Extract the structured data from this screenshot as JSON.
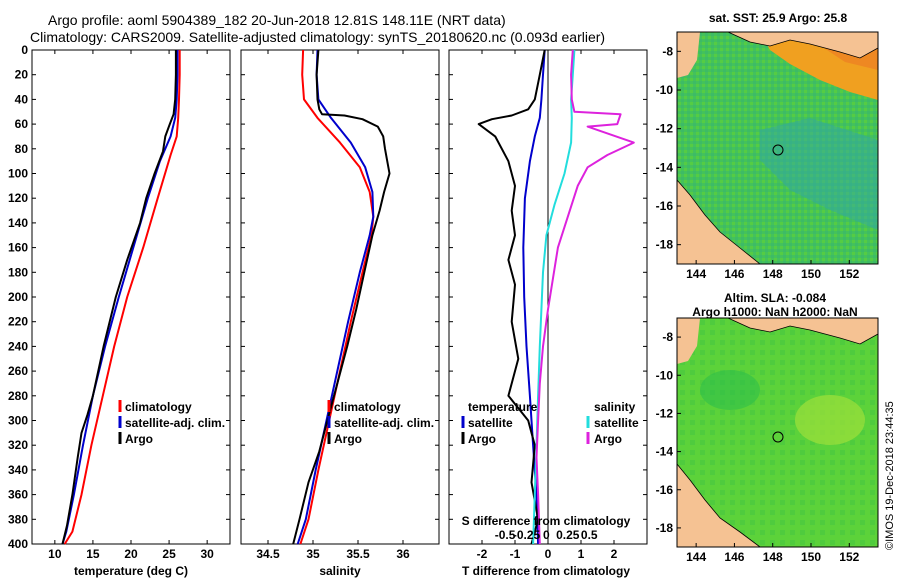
{
  "header": {
    "title_line1": "Argo profile: aoml 5904389_182 20-Jun-2018 12.81S 148.11E (NRT data)",
    "title_line2": "Climatology: CARS2009. Satellite-adjusted climatology: synTS_20180620.nc (0.093d earlier)"
  },
  "side_stamp": "©IMOS 19-Dec-2018 23:44:35",
  "colors": {
    "climatology": "#ff0000",
    "satellite": "#0000cc",
    "argo": "#000000",
    "sat_salinity": "#22dddd",
    "salinity_clim_diff": "#dd22dd",
    "land": "#f5c293",
    "ocean_green": "#4cc24c"
  },
  "chart_data": [
    {
      "type": "line",
      "id": "temperature",
      "xlabel": "temperature (deg C)",
      "ylabel": "",
      "xlim": [
        7,
        33
      ],
      "ylim": [
        400,
        0
      ],
      "xticks": [
        10,
        15,
        20,
        25,
        30
      ],
      "yticks": [
        0,
        20,
        40,
        60,
        80,
        100,
        120,
        140,
        160,
        180,
        200,
        220,
        240,
        260,
        280,
        300,
        320,
        340,
        360,
        380,
        400
      ],
      "legend": [
        "climatology",
        "satellite-adj. clim.",
        "Argo"
      ],
      "series": [
        {
          "name": "climatology",
          "color": "#ff0000",
          "x": [
            26.4,
            26.4,
            26.3,
            26.2,
            26.0,
            25.2,
            23.5,
            21.6,
            19.5,
            17.8,
            16.3,
            14.8,
            13.5,
            12.3,
            11.3
          ],
          "y": [
            0,
            20,
            40,
            55,
            70,
            85,
            120,
            160,
            200,
            240,
            280,
            320,
            360,
            390,
            400
          ]
        },
        {
          "name": "satellite-adj. clim.",
          "color": "#0000cc",
          "x": [
            26.1,
            26.1,
            26.0,
            25.8,
            25.2,
            23.8,
            22.2,
            20.3,
            18.4,
            16.6,
            15.0,
            13.7,
            12.5,
            11.5,
            11.0
          ],
          "y": [
            0,
            20,
            40,
            55,
            70,
            90,
            120,
            160,
            200,
            240,
            280,
            320,
            360,
            390,
            400
          ]
        },
        {
          "name": "Argo",
          "color": "#000000",
          "x": [
            25.9,
            25.9,
            25.8,
            25.6,
            25.1,
            24.5,
            24.2,
            23.1,
            22.0,
            21.2,
            19.5,
            18.0,
            16.4,
            15.0,
            14.3,
            13.5,
            13.0,
            12.3,
            11.6,
            11.0
          ],
          "y": [
            0,
            20,
            40,
            52,
            60,
            70,
            82,
            100,
            120,
            140,
            170,
            200,
            240,
            280,
            295,
            310,
            330,
            360,
            385,
            400
          ]
        }
      ]
    },
    {
      "type": "line",
      "id": "salinity",
      "xlabel": "salinity",
      "ylabel": "",
      "xlim": [
        34.2,
        36.4
      ],
      "ylim": [
        400,
        0
      ],
      "xticks": [
        34.5,
        35,
        35.5,
        36
      ],
      "xtick_labels": [
        "34.5",
        "35",
        "35.5",
        "36"
      ],
      "legend": [
        "climatology",
        "satellite-adj. clim.",
        "Argo"
      ],
      "series": [
        {
          "name": "climatology",
          "color": "#ff0000",
          "x": [
            34.89,
            34.88,
            34.9,
            35.05,
            35.3,
            35.52,
            35.63,
            35.67,
            35.65,
            35.55,
            35.42,
            35.3,
            35.18,
            35.06,
            34.95,
            34.86
          ],
          "y": [
            0,
            20,
            40,
            55,
            75,
            95,
            115,
            135,
            150,
            180,
            220,
            260,
            300,
            340,
            380,
            400
          ]
        },
        {
          "name": "satellite-adj. clim.",
          "color": "#0000cc",
          "x": [
            35.05,
            35.04,
            35.06,
            35.2,
            35.42,
            35.58,
            35.66,
            35.67,
            35.63,
            35.52,
            35.39,
            35.27,
            35.15,
            35.03,
            34.92,
            34.83
          ],
          "y": [
            0,
            20,
            40,
            55,
            75,
            95,
            115,
            135,
            150,
            180,
            220,
            260,
            300,
            340,
            380,
            400
          ]
        },
        {
          "name": "Argo",
          "color": "#000000",
          "x": [
            35.06,
            35.04,
            35.05,
            35.07,
            35.1,
            35.35,
            35.55,
            35.72,
            35.78,
            35.8,
            35.85,
            35.79,
            35.74,
            35.66,
            35.57,
            35.48,
            35.38,
            35.27,
            35.16,
            35.07,
            34.95,
            34.85,
            34.78
          ],
          "y": [
            0,
            20,
            40,
            48,
            52,
            53,
            56,
            62,
            70,
            80,
            100,
            115,
            130,
            150,
            180,
            210,
            240,
            270,
            300,
            325,
            350,
            380,
            400
          ]
        }
      ]
    },
    {
      "type": "line",
      "id": "difference",
      "xlabel": "T difference from climatology",
      "top_axis_label": "S difference from climatology",
      "xlim": [
        -3,
        3
      ],
      "ylim": [
        400,
        0
      ],
      "xticks": [
        -2,
        -1,
        0,
        1,
        2
      ],
      "xtick_labels": [
        "-2",
        "-1",
        "0",
        "1",
        "2"
      ],
      "s_xticks": [
        -1.3,
        -0.65,
        -0.05,
        0.6,
        1.25
      ],
      "s_xtick_labels": [
        "-0.5",
        "-0.25",
        "0",
        "0.25",
        "0.5"
      ],
      "legend_left_title": "temperature",
      "legend_right_title": "salinity",
      "legend": [
        "satellite",
        "Argo",
        "satellite",
        "Argo"
      ],
      "series": [
        {
          "name": "T satellite",
          "color": "#0000cc",
          "x": [
            -0.1,
            -0.15,
            -0.2,
            -0.25,
            -0.4,
            -0.55,
            -0.7,
            -0.75,
            -0.72,
            -0.65,
            -0.55,
            -0.45,
            -0.35,
            -0.3
          ],
          "y": [
            0,
            20,
            40,
            55,
            70,
            90,
            120,
            160,
            200,
            240,
            280,
            320,
            360,
            400
          ]
        },
        {
          "name": "T Argo",
          "color": "#000000",
          "x": [
            -0.1,
            -0.25,
            -0.4,
            -0.6,
            -1.1,
            -1.7,
            -2.1,
            -1.6,
            -1.2,
            -1.0,
            -1.1,
            -1.0,
            -1.2,
            -1.0,
            -1.1,
            -0.9,
            -1.2,
            -0.6,
            -0.4,
            -0.5,
            -0.3,
            -0.5
          ],
          "y": [
            0,
            20,
            40,
            48,
            53,
            56,
            60,
            70,
            90,
            110,
            130,
            150,
            170,
            190,
            220,
            250,
            280,
            300,
            320,
            350,
            380,
            400
          ]
        },
        {
          "name": "S satellite",
          "color": "#22dddd",
          "x": [
            0.8,
            0.75,
            0.7,
            0.72,
            0.7,
            0.5,
            0.2,
            -0.05,
            -0.15,
            -0.2,
            -0.25,
            -0.3,
            -0.35,
            -0.4,
            -0.45
          ],
          "y": [
            0,
            20,
            40,
            55,
            75,
            100,
            125,
            150,
            180,
            210,
            240,
            280,
            320,
            360,
            400
          ]
        },
        {
          "name": "S Argo",
          "color": "#dd22dd",
          "x": [
            0.75,
            0.7,
            0.72,
            0.8,
            2.2,
            2.1,
            1.2,
            2.6,
            1.8,
            1.2,
            0.9,
            0.3,
            0.0,
            -0.15,
            -0.25,
            -0.3,
            -0.35,
            -0.3,
            -0.25
          ],
          "y": [
            0,
            20,
            40,
            50,
            52,
            60,
            62,
            75,
            85,
            95,
            110,
            160,
            210,
            240,
            270,
            300,
            330,
            360,
            400
          ]
        }
      ]
    }
  ],
  "maps": [
    {
      "title_lines": [
        "sat. SST: 25.9 Argo: 25.8"
      ],
      "xticks": [
        "144",
        "146",
        "148",
        "150",
        "152"
      ],
      "yticks": [
        "-8",
        "-10",
        "-12",
        "-14",
        "-16",
        "-18"
      ],
      "lon": [
        143,
        153.5
      ],
      "lat": [
        -19,
        -7
      ],
      "argo_point": [
        148.11,
        -12.81
      ]
    },
    {
      "title_lines": [
        "Altim. SLA: -0.084",
        "Argo h1000: NaN h2000: NaN"
      ],
      "xticks": [
        "144",
        "146",
        "148",
        "150",
        "152"
      ],
      "yticks": [
        "-8",
        "-10",
        "-12",
        "-14",
        "-16",
        "-18"
      ],
      "lon": [
        143,
        153.5
      ],
      "lat": [
        -19,
        -7
      ],
      "argo_point": [
        148.11,
        -12.81
      ]
    }
  ]
}
